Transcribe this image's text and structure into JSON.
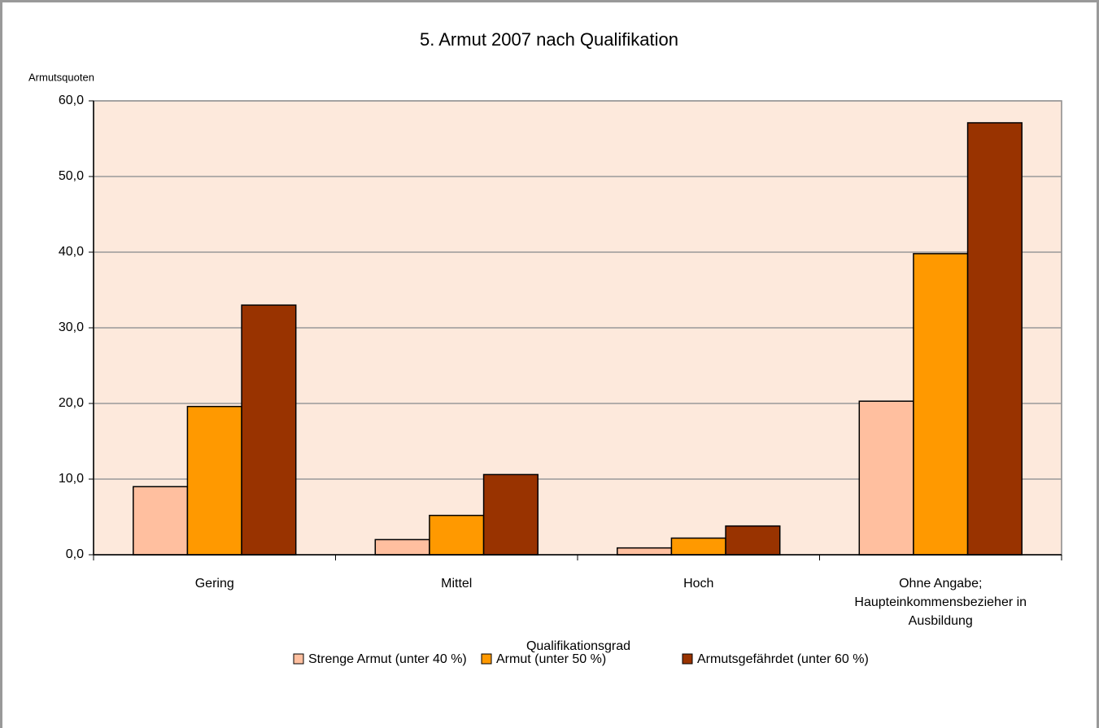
{
  "chart_data": {
    "type": "bar",
    "title": "5. Armut 2007 nach Qualifikation",
    "y_axis_label": "Armutsquoten",
    "x_axis_label": "Qualifikationsgrad",
    "categories": [
      "Gering",
      "Mittel",
      "Hoch",
      "Ohne Angabe; Haupteinkommensbezieher in Ausbildung"
    ],
    "series": [
      {
        "name": "Strenge Armut (unter 40 %)",
        "color": "#ffbf9f",
        "values": [
          9.0,
          2.0,
          0.9,
          20.3
        ]
      },
      {
        "name": "Armut (unter 50 %)",
        "color": "#ff9900",
        "values": [
          19.6,
          5.2,
          2.2,
          39.8
        ]
      },
      {
        "name": "Armutsgefährdet (unter 60 %)",
        "color": "#993300",
        "values": [
          33.0,
          10.6,
          3.8,
          57.1
        ]
      }
    ],
    "ylim": [
      0,
      60
    ],
    "yticks": [
      {
        "value": 0,
        "label": "0,0"
      },
      {
        "value": 10,
        "label": "10,0"
      },
      {
        "value": 20,
        "label": "20,0"
      },
      {
        "value": 30,
        "label": "30,0"
      },
      {
        "value": 40,
        "label": "40,0"
      },
      {
        "value": 50,
        "label": "50,0"
      },
      {
        "value": 60,
        "label": "60,0"
      }
    ],
    "grid": true,
    "legend": "bottom"
  }
}
